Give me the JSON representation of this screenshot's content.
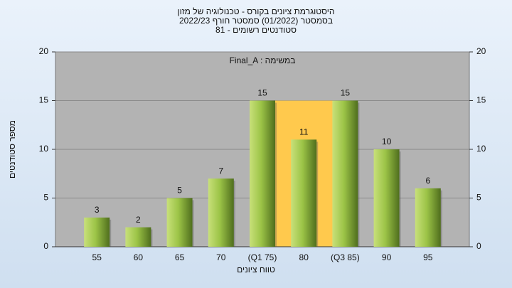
{
  "chart_data": {
    "type": "bar",
    "title": "היסטוגרמת ציונים בקורס - טכנולוגיה של מזון",
    "subtitle": "בסמסטר  (01/2022)  סמסטר חורף 2022/23",
    "subtitle2": "סטודנטים רשומים - 81",
    "annotation": "Final_A : במשימה",
    "x_label": "טווח ציונים",
    "y_label": "מספר סטודנטים",
    "categories": [
      "55",
      "60",
      "65",
      "70",
      "(Q1 75)",
      "80",
      "(Q3 85)",
      "90",
      "95"
    ],
    "values": [
      3,
      2,
      5,
      7,
      15,
      11,
      15,
      10,
      6
    ],
    "color": "#8fbc3a",
    "ylim": [
      0,
      20
    ],
    "yticks": [
      0,
      5,
      10,
      15,
      20
    ],
    "y2lim": [
      0,
      20
    ],
    "y2ticks": [
      0,
      5,
      10,
      15,
      20
    ],
    "grid": true
  }
}
